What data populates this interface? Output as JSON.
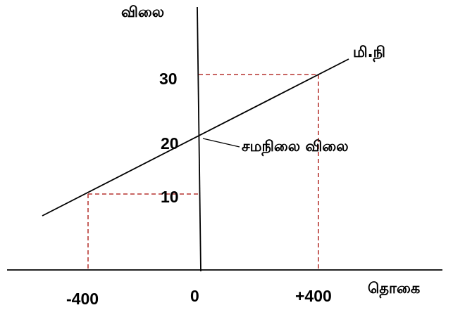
{
  "diagram": {
    "y_axis_label": "விலை",
    "x_axis_label": "தொகை",
    "line_label": "மி.நி",
    "equilibrium_label": "சமநிலை  விலை",
    "y_ticks": [
      "30",
      "20",
      "10"
    ],
    "x_ticks": [
      "-400",
      "0",
      "+400"
    ],
    "points": [
      {
        "x": -400,
        "y": 10
      },
      {
        "x": 0,
        "y": 20
      },
      {
        "x": 400,
        "y": 30
      }
    ],
    "colors": {
      "axes": "#000000",
      "line": "#000000",
      "guides": "#c0504d"
    }
  }
}
